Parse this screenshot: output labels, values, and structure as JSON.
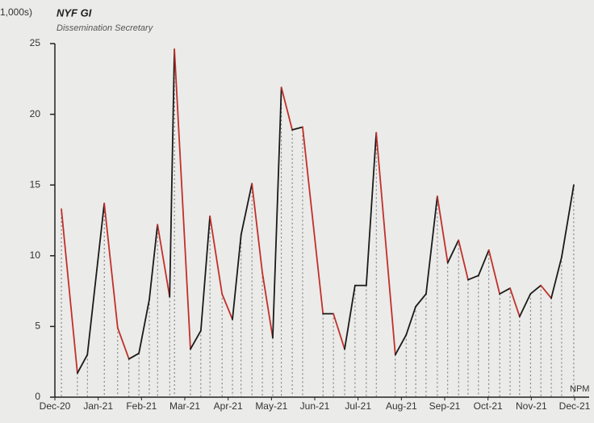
{
  "chart_data": {
    "type": "line",
    "unit_label": "1,000s)",
    "title": "NYF GI",
    "subtitle": "Dissemination Secretary",
    "corner_label": "NPM",
    "up_color": "#1a1a1a",
    "down_color": "#c0302a",
    "x": [
      0.15,
      0.52,
      0.75,
      1.14,
      1.45,
      1.71,
      1.94,
      2.18,
      2.37,
      2.65,
      2.76,
      3.13,
      3.37,
      3.58,
      3.86,
      4.1,
      4.3,
      4.55,
      4.79,
      5.03,
      5.23,
      5.48,
      5.72,
      6.19,
      6.43,
      6.69,
      6.93,
      7.19,
      7.42,
      7.86,
      8.11,
      8.33,
      8.57,
      8.83,
      9.07,
      9.32,
      9.54,
      9.78,
      10.02,
      10.27,
      10.51,
      10.73,
      10.98,
      11.22,
      11.46,
      11.7,
      11.98
    ],
    "values": [
      13.3,
      1.7,
      3.0,
      13.7,
      4.9,
      2.7,
      3.1,
      6.9,
      12.2,
      7.1,
      24.6,
      3.4,
      4.7,
      12.8,
      7.3,
      5.5,
      11.5,
      15.1,
      8.8,
      4.2,
      21.9,
      18.9,
      19.1,
      5.9,
      5.9,
      3.4,
      7.9,
      7.9,
      18.7,
      3.0,
      4.4,
      6.4,
      7.3,
      14.2,
      9.5,
      11.1,
      8.3,
      8.6,
      10.4,
      7.3,
      7.7,
      5.7,
      7.3,
      7.9,
      7.0,
      9.9,
      15.0
    ],
    "xlim": [
      0,
      12
    ],
    "xticks": [
      {
        "value": 0,
        "label": "Dec-20"
      },
      {
        "value": 1,
        "label": "Jan-21"
      },
      {
        "value": 2,
        "label": "Feb-21"
      },
      {
        "value": 3,
        "label": "Mar-21"
      },
      {
        "value": 4,
        "label": "Apr-21"
      },
      {
        "value": 5,
        "label": "May-21"
      },
      {
        "value": 6,
        "label": "Jun-21"
      },
      {
        "value": 7,
        "label": "Jul-21"
      },
      {
        "value": 8,
        "label": "Aug-21"
      },
      {
        "value": 9,
        "label": "Sep-21"
      },
      {
        "value": 10,
        "label": "Oct-21"
      },
      {
        "value": 11,
        "label": "Nov-21"
      },
      {
        "value": 12,
        "label": "Dec-21"
      }
    ],
    "ylim": [
      0,
      25
    ],
    "yticks": [
      0,
      5,
      10,
      15,
      20,
      25
    ],
    "drop_lines": true
  }
}
